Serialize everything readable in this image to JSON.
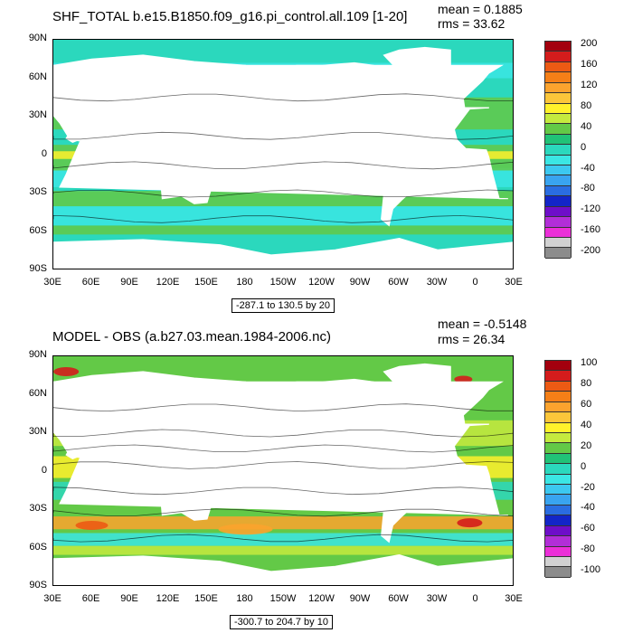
{
  "panels": [
    {
      "title": "SHF_TOTAL b.e15.B1850.f09_g16.pi_control.all.109 [1-20]",
      "mean_text": "mean = 0.1885",
      "rms_text": "rms = 33.62",
      "contour_info": "-287.1 to 130.5 by 20",
      "colorbar_labels": [
        "200",
        "160",
        "120",
        "80",
        "40",
        "0",
        "-40",
        "-80",
        "-120",
        "-160",
        "-200"
      ],
      "colorbar_colors": [
        "#a3000e",
        "#d41c1c",
        "#ec5a14",
        "#f57f17",
        "#fba32e",
        "#fbc63a",
        "#fff12b",
        "#c5ea3e",
        "#63c947",
        "#21c277",
        "#2bd8bd",
        "#3be6e4",
        "#3cc8f0",
        "#39a4f0",
        "#2a6de1",
        "#1325c8",
        "#6e0ec9",
        "#b22ed8",
        "#eb2fd8",
        "#d1d1d1",
        "#8c8c8c"
      ]
    },
    {
      "title": "MODEL - OBS (a.b27.03.mean.1984-2006.nc)",
      "mean_text": "mean = -0.5148",
      "rms_text": "rms = 26.34",
      "contour_info": "-300.7 to 204.7 by 10",
      "colorbar_labels": [
        "100",
        "80",
        "60",
        "40",
        "20",
        "0",
        "-20",
        "-40",
        "-60",
        "-80",
        "-100"
      ],
      "colorbar_colors": [
        "#a3000e",
        "#d41c1c",
        "#ec5a14",
        "#f57f17",
        "#fba32e",
        "#fbc63a",
        "#fff12b",
        "#c5ea3e",
        "#63c947",
        "#21c277",
        "#2bd8bd",
        "#3be6e4",
        "#3cc8f0",
        "#39a4f0",
        "#2a6de1",
        "#1325c8",
        "#6e0ec9",
        "#b22ed8",
        "#eb2fd8",
        "#d1d1d1",
        "#8c8c8c"
      ]
    }
  ],
  "y_ticks": [
    "90N",
    "60N",
    "30N",
    "0",
    "30S",
    "60S",
    "90S"
  ],
  "x_ticks": [
    "30E",
    "60E",
    "90E",
    "120E",
    "150E",
    "180",
    "150W",
    "120W",
    "90W",
    "60W",
    "30W",
    "0",
    "30E"
  ]
}
